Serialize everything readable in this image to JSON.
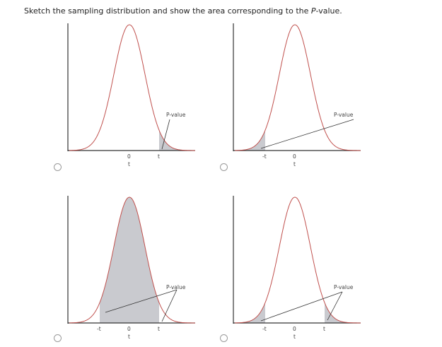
{
  "question": {
    "prefix": "Sketch the sampling distribution and show the area corresponding to the ",
    "emphasis": "P",
    "suffix": "-value."
  },
  "colors": {
    "curve": "#c0504d",
    "shade": "#c9cacf",
    "axis": "#333333",
    "pointer": "#333333"
  },
  "options": [
    {
      "id": "option-a",
      "shade": "right-tail",
      "selected": false,
      "pvalue_label": "P-value",
      "zero_label": "0",
      "t_label": "t",
      "tail_labels": [
        "t"
      ]
    },
    {
      "id": "option-b",
      "shade": "left-tail",
      "selected": false,
      "pvalue_label": "P-value",
      "zero_label": "0",
      "t_label": "t",
      "tail_labels": [
        "-t"
      ]
    },
    {
      "id": "option-c",
      "shade": "center",
      "selected": false,
      "pvalue_label": "P-value",
      "zero_label": "0",
      "t_label": "t",
      "tail_labels": [
        "-t",
        "t"
      ]
    },
    {
      "id": "option-d",
      "shade": "two-tails",
      "selected": false,
      "pvalue_label": "P-value",
      "zero_label": "0",
      "t_label": "t",
      "tail_labels": [
        "-t",
        "t"
      ]
    }
  ]
}
